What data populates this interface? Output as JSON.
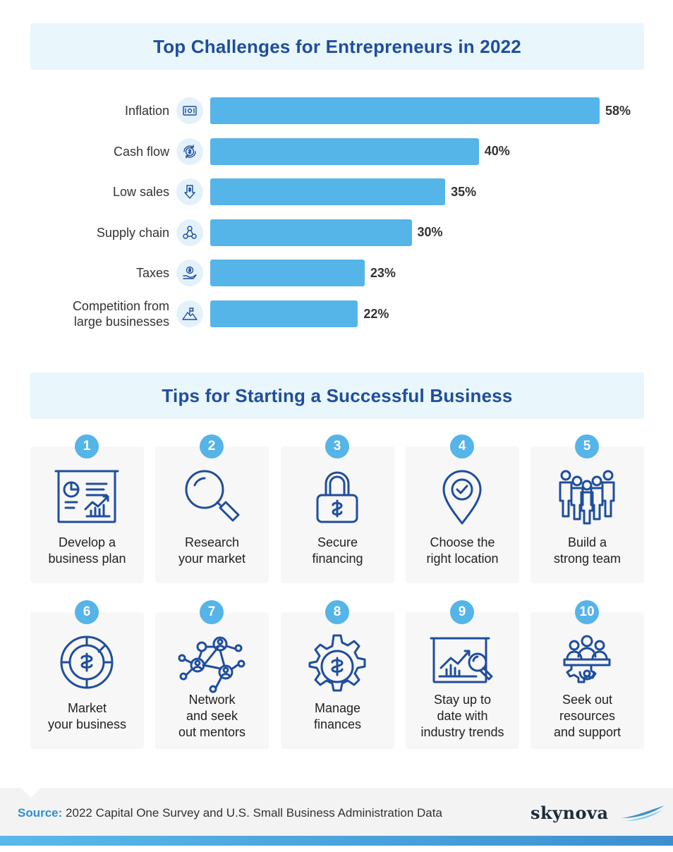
{
  "chart_data": {
    "type": "bar",
    "orientation": "horizontal",
    "title": "Top Challenges for Entrepreneurs in 2022",
    "categories": [
      "Inflation",
      "Cash flow",
      "Low sales",
      "Supply chain",
      "Taxes",
      "Competition from large businesses"
    ],
    "category_lines": [
      [
        "Inflation"
      ],
      [
        "Cash flow"
      ],
      [
        "Low sales"
      ],
      [
        "Supply chain"
      ],
      [
        "Taxes"
      ],
      [
        "Competition from",
        "large businesses"
      ]
    ],
    "values": [
      58,
      40,
      35,
      30,
      23,
      22
    ],
    "value_labels": [
      "58%",
      "40%",
      "35%",
      "30%",
      "23%",
      "22%"
    ],
    "icons": [
      "money-icon",
      "cash-cycle-icon",
      "sales-down-icon",
      "supply-network-icon",
      "tax-hand-icon",
      "mountain-flag-icon"
    ],
    "xlim": [
      0,
      58
    ],
    "bar_color": "#55b4e8",
    "grid": false,
    "legend": "none"
  },
  "tips": {
    "title": "Tips for Starting a Successful Business",
    "items": [
      {
        "num": "1",
        "label": "Develop a\nbusiness plan",
        "icon": "presentation-chart-icon"
      },
      {
        "num": "2",
        "label": "Research\nyour market",
        "icon": "magnifier-icon"
      },
      {
        "num": "3",
        "label": "Secure\nfinancing",
        "icon": "lock-dollar-icon"
      },
      {
        "num": "4",
        "label": "Choose the\nright location",
        "icon": "location-pin-icon"
      },
      {
        "num": "5",
        "label": "Build a\nstrong team",
        "icon": "team-icon"
      },
      {
        "num": "6",
        "label": "Market\nyour business",
        "icon": "dollar-target-icon"
      },
      {
        "num": "7",
        "label": "Network\nand seek\nout mentors",
        "icon": "network-icon"
      },
      {
        "num": "8",
        "label": "Manage\nfinances",
        "icon": "gear-dollar-icon"
      },
      {
        "num": "9",
        "label": "Stay up to\ndate with\nindustry trends",
        "icon": "trend-analysis-icon"
      },
      {
        "num": "10",
        "label": "Seek out\nresources\nand support",
        "icon": "support-group-icon"
      }
    ]
  },
  "footer": {
    "source_label": "Source:",
    "source_text": "2022 Capital One Survey and U.S. Small Business Administration Data",
    "logo": "skynova"
  },
  "colors": {
    "title_text": "#1f4e9c",
    "banner_bg": "#e9f6fb",
    "accent": "#55b4e8",
    "icon_stroke": "#1f4e9c"
  }
}
